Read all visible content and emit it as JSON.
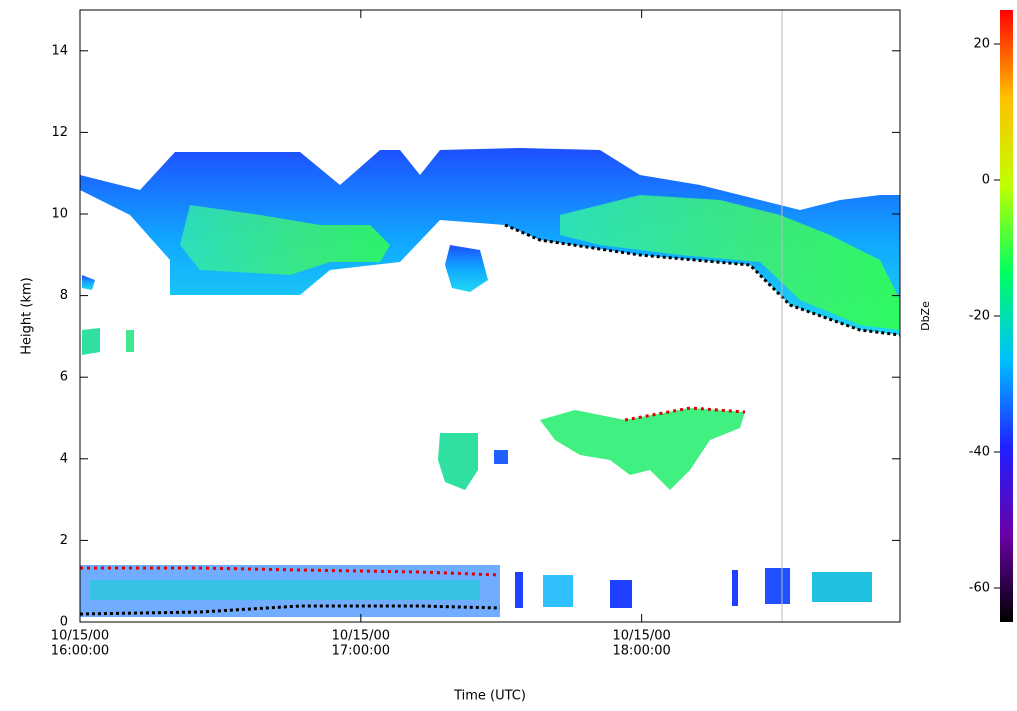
{
  "chart_data": {
    "type": "heatmap",
    "xlabel": "Time (UTC)",
    "ylabel": "Height (km)",
    "xlim": [
      16,
      18.92
    ],
    "xticks": [
      {
        "value": 16,
        "label": [
          "10/15/00",
          "16:00:00"
        ]
      },
      {
        "value": 17,
        "label": [
          "10/15/00",
          "17:00:00"
        ]
      },
      {
        "value": 18,
        "label": [
          "10/15/00",
          "18:00:00"
        ]
      }
    ],
    "ylim": [
      0,
      15
    ],
    "yticks": [
      0,
      2,
      4,
      6,
      8,
      10,
      12,
      14
    ],
    "colorbar": {
      "label": "DbZe",
      "lim": [
        -65,
        25
      ],
      "ticks": [
        -60,
        -40,
        -20,
        0,
        20
      ],
      "colormap": [
        "#000000",
        "#6a00a8",
        "#2020ff",
        "#00c0ff",
        "#00ff60",
        "#c0ff00",
        "#ffc000",
        "#ff0000"
      ]
    }
  }
}
